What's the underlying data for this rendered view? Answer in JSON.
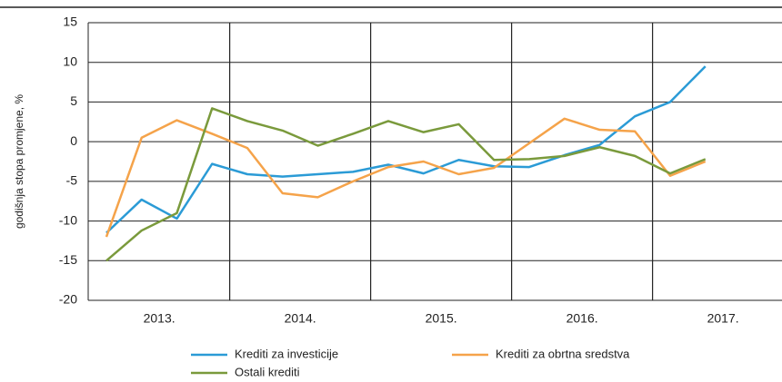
{
  "chart_data": {
    "type": "line",
    "y_label": "godišnja stopa promjene, %",
    "years": [
      "2013.",
      "2014.",
      "2015.",
      "2016.",
      "2017."
    ],
    "categories": [
      null,
      null,
      null,
      null,
      null,
      null,
      null,
      null,
      null,
      null,
      null,
      null,
      null,
      null,
      null,
      null,
      null,
      null
    ],
    "series": [
      {
        "name": "Krediti za investicije",
        "color": "#2b9bd6",
        "values": [
          -11.5,
          -7.3,
          -9.7,
          -2.8,
          -4.1,
          -4.4,
          -4.1,
          -3.8,
          -2.9,
          -4.0,
          -2.3,
          -3.1,
          -3.2,
          -1.7,
          -0.4,
          3.2,
          5.0,
          9.5
        ]
      },
      {
        "name": "Krediti za obrtna sredstva",
        "color": "#f5a34a",
        "values": [
          -12,
          0.5,
          2.7,
          1.0,
          -0.8,
          -6.5,
          -7.0,
          -5.0,
          -3.2,
          -2.5,
          -4.1,
          -3.3,
          -0.2,
          2.9,
          1.5,
          1.3,
          -4.3,
          -2.5
        ]
      },
      {
        "name": "Ostali krediti",
        "color": "#7a9a3c",
        "values": [
          -15,
          -11.2,
          -9.0,
          4.2,
          2.6,
          1.4,
          -0.5,
          1.0,
          2.6,
          1.2,
          2.2,
          -2.3,
          -2.2,
          -1.8,
          -0.7,
          -1.8,
          -4.0,
          -2.2
        ]
      }
    ],
    "ylim": [
      -20,
      15
    ],
    "yticks": [
      -20,
      -15,
      -10,
      -5,
      0,
      5,
      10,
      15
    ],
    "grid": true
  }
}
